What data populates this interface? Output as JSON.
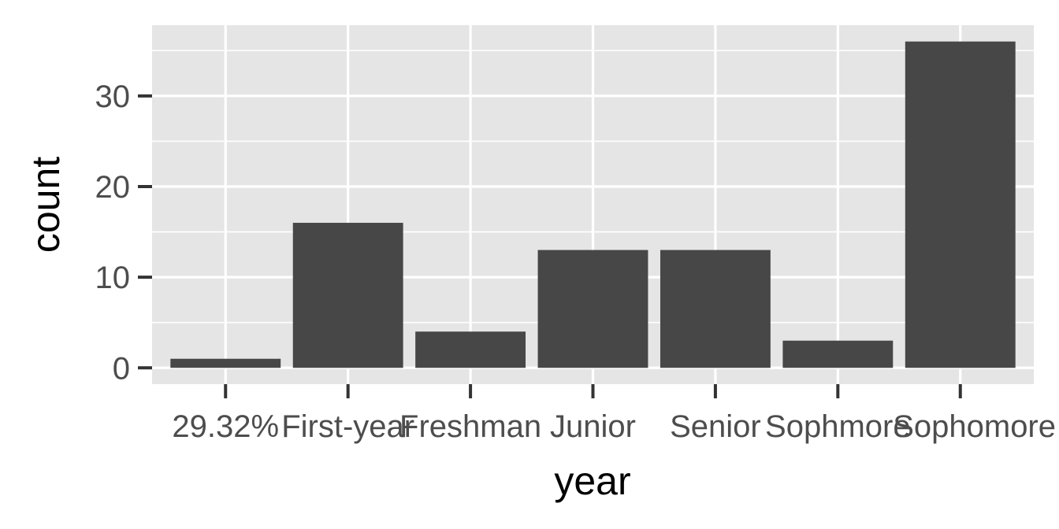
{
  "chart_data": {
    "type": "bar",
    "title": "",
    "xlabel": "year",
    "ylabel": "count",
    "categories": [
      "29.32%",
      "First-year",
      "Freshman",
      "Junior",
      "Senior",
      "Sophmore",
      "Sophomore"
    ],
    "values": [
      1,
      16,
      4,
      13,
      13,
      3,
      36
    ],
    "ylim": [
      -1.8,
      37.8
    ],
    "yticks": [
      0,
      10,
      20,
      30
    ],
    "grid": true,
    "colors": {
      "panel": "#e5e5e5",
      "grid": "#ffffff",
      "bar": "#474747",
      "tick_text": "#4d4d4d",
      "axis_title": "#000000"
    }
  }
}
